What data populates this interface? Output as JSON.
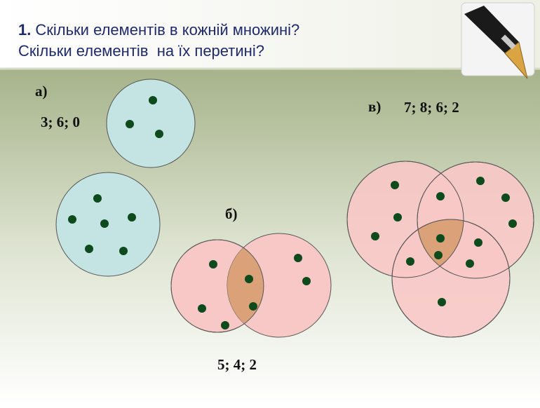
{
  "title": {
    "number": "1.",
    "line1": "Скільки елементів в кожній множині?",
    "line2": "Скільки елементів  на їх перетині?"
  },
  "parts": [
    {
      "label": "а)",
      "answer": "3; 6; 0"
    },
    {
      "label": "б)",
      "answer": "5; 4; 2"
    },
    {
      "label": "в)",
      "answer": "7; 8; 6; 2"
    }
  ]
}
